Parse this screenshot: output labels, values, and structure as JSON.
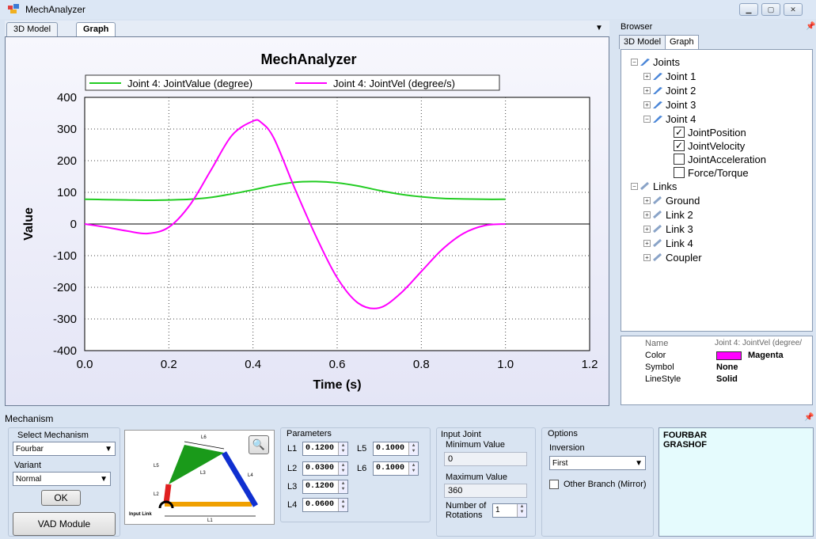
{
  "app": {
    "title": "MechAnalyzer"
  },
  "doc_tabs": [
    "3D Model",
    "Graph"
  ],
  "browser": {
    "title": "Browser",
    "tabs": [
      "3D Model",
      "Graph"
    ],
    "tree": {
      "joints_label": "Joints",
      "joints": [
        "Joint 1",
        "Joint 2",
        "Joint 3",
        "Joint 4"
      ],
      "joint4_children": [
        {
          "label": "JointPosition",
          "checked": true
        },
        {
          "label": "JointVelocity",
          "checked": true
        },
        {
          "label": "JointAcceleration",
          "checked": false
        },
        {
          "label": "Force/Torque",
          "checked": false
        }
      ],
      "links_label": "Links",
      "links": [
        "Ground",
        "Link 2",
        "Link 3",
        "Link 4",
        "Coupler"
      ]
    },
    "properties": {
      "name_key": "Name",
      "name_val": "Joint 4: JointVel (degree/",
      "color_key": "Color",
      "color_val": "Magenta",
      "color_hex": "#ff00ff",
      "symbol_key": "Symbol",
      "symbol_val": "None",
      "linestyle_key": "LineStyle",
      "linestyle_val": "Solid"
    }
  },
  "chart_data": {
    "type": "line",
    "title": "MechAnalyzer",
    "xlabel": "Time (s)",
    "ylabel": "Value",
    "xlim": [
      0.0,
      1.2
    ],
    "ylim": [
      -400,
      400
    ],
    "xticks": [
      "0.0",
      "0.2",
      "0.4",
      "0.6",
      "0.8",
      "1.0",
      "1.2"
    ],
    "yticks": [
      "400",
      "300",
      "200",
      "100",
      "0",
      "-100",
      "-200",
      "-300",
      "-400"
    ],
    "grid": true,
    "legend_position": "top",
    "series": [
      {
        "name": "Joint 4: JointValue (degree)",
        "color": "#22cc22",
        "x": [
          0,
          0.05,
          0.1,
          0.15,
          0.2,
          0.25,
          0.3,
          0.35,
          0.4,
          0.45,
          0.5,
          0.55,
          0.6,
          0.65,
          0.7,
          0.75,
          0.8,
          0.85,
          0.9,
          0.95,
          1.0
        ],
        "y": [
          78,
          77,
          76,
          75,
          76,
          78,
          84,
          95,
          108,
          122,
          132,
          134,
          130,
          120,
          106,
          94,
          86,
          81,
          79,
          78,
          78
        ]
      },
      {
        "name": "Joint 4: JointVel (degree/s)",
        "color": "#ff00ff",
        "x": [
          0,
          0.05,
          0.1,
          0.15,
          0.2,
          0.25,
          0.3,
          0.35,
          0.4,
          0.42,
          0.45,
          0.5,
          0.55,
          0.6,
          0.65,
          0.7,
          0.75,
          0.8,
          0.85,
          0.9,
          0.95,
          1.0
        ],
        "y": [
          0,
          -10,
          -22,
          -30,
          -10,
          60,
          170,
          280,
          325,
          320,
          270,
          110,
          -40,
          -170,
          -250,
          -265,
          -220,
          -150,
          -80,
          -30,
          -5,
          0
        ]
      }
    ]
  },
  "mechanism": {
    "title": "Mechanism",
    "select_label": "Select Mechanism",
    "select_value": "Fourbar",
    "variant_label": "Variant",
    "variant_value": "Normal",
    "ok_label": "OK",
    "vad_label": "VAD Module",
    "diagram_labels": {
      "l1": "L1",
      "l2": "L2",
      "l3": "L3",
      "l4": "L4",
      "l5": "L5",
      "l6": "L6",
      "input": "Input Link"
    },
    "params_title": "Parameters",
    "params": [
      {
        "label": "L1",
        "value": "0.1200"
      },
      {
        "label": "L2",
        "value": "0.0300"
      },
      {
        "label": "L3",
        "value": "0.1200"
      },
      {
        "label": "L4",
        "value": "0.0600"
      },
      {
        "label": "L5",
        "value": "0.1000"
      },
      {
        "label": "L6",
        "value": "0.1000"
      }
    ],
    "input_joint_title": "Input Joint",
    "min_label": "Minimum Value",
    "min_value": "0",
    "max_label": "Maximum Value",
    "max_value": "360",
    "rotations_label_1": "Number of",
    "rotations_label_2": "Rotations",
    "rotations_value": "1",
    "options_title": "Options",
    "inversion_label": "Inversion",
    "inversion_value": "First",
    "other_branch_label": "Other Branch (Mirror)",
    "result_lines": [
      "FOURBAR",
      "GRASHOF"
    ]
  }
}
